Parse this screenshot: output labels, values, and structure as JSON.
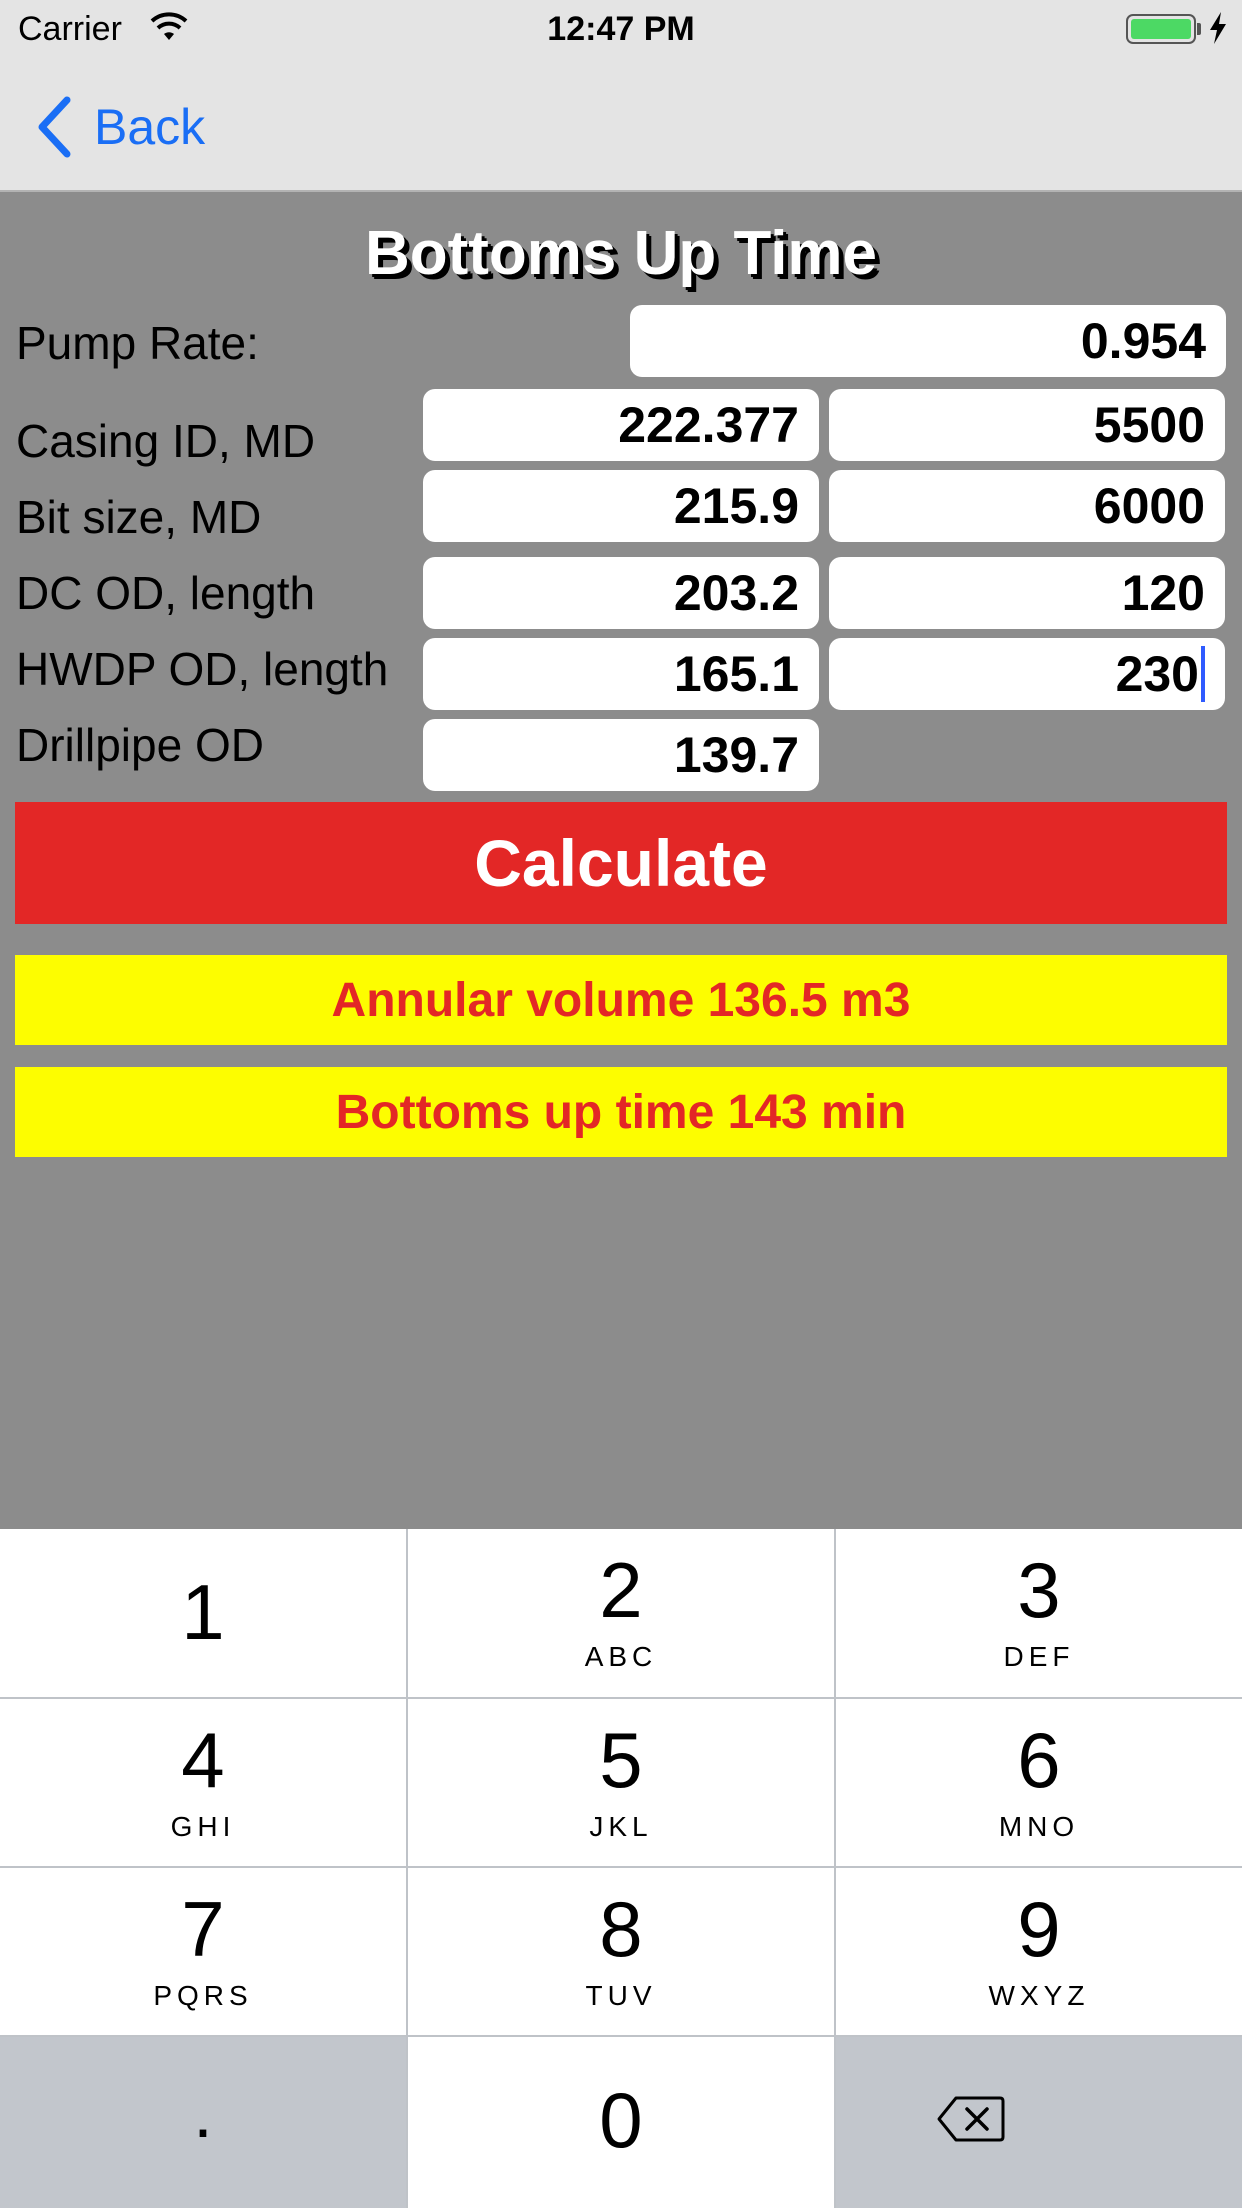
{
  "status_bar": {
    "carrier": "Carrier",
    "time": "12:47 PM"
  },
  "nav": {
    "back_label": "Back"
  },
  "form": {
    "title": "Bottoms Up Time",
    "rows": [
      {
        "label": "Pump Rate:",
        "value_1": "0.954"
      },
      {
        "label": "Casing ID, MD",
        "value_1": "222.377",
        "value_2": "5500"
      },
      {
        "label": "Bit size, MD",
        "value_1": "215.9",
        "value_2": "6000"
      },
      {
        "label": "DC OD, length",
        "value_1": "203.2",
        "value_2": "120"
      },
      {
        "label": "HWDP OD, length",
        "value_1": "165.1",
        "value_2": "230"
      },
      {
        "label": "Drillpipe OD",
        "value_1": "139.7"
      }
    ],
    "calculate_label": "Calculate"
  },
  "results": {
    "annular_volume": "Annular volume 136.5 m3",
    "bottoms_up_time": "Bottoms up time 143 min"
  },
  "keypad": {
    "keys": [
      {
        "digit": "1",
        "letters": ""
      },
      {
        "digit": "2",
        "letters": "ABC"
      },
      {
        "digit": "3",
        "letters": "DEF"
      },
      {
        "digit": "4",
        "letters": "GHI"
      },
      {
        "digit": "5",
        "letters": "JKL"
      },
      {
        "digit": "6",
        "letters": "MNO"
      },
      {
        "digit": "7",
        "letters": "PQRS"
      },
      {
        "digit": "8",
        "letters": "TUV"
      },
      {
        "digit": "9",
        "letters": "WXYZ"
      },
      {
        "digit": "0",
        "letters": ""
      }
    ],
    "decimal": ".",
    "backspace_icon": "backspace-icon"
  },
  "colors": {
    "background": "#8c8c8c",
    "nav_tint": "#1a6ef5",
    "calculate": "#e32726",
    "result_bg": "#fdfd00",
    "result_text": "#e32726",
    "battery": "#4cd964"
  }
}
